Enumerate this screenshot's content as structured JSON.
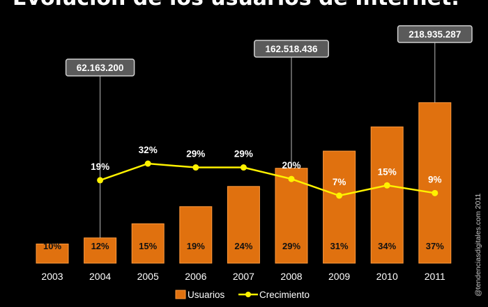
{
  "chart_data": {
    "type": "bar",
    "title": "Evolución de los usuarios de Internet.",
    "categories": [
      "2003",
      "2004",
      "2005",
      "2006",
      "2007",
      "2008",
      "2009",
      "2010",
      "2011"
    ],
    "bar_heights_relative": [
      0.19,
      0.25,
      0.39,
      0.56,
      0.76,
      0.94,
      1.11,
      1.35,
      1.59
    ],
    "series": [
      {
        "name": "Usuarios",
        "type": "bar",
        "labels": [
          "10%",
          "12%",
          "15%",
          "19%",
          "24%",
          "29%",
          "31%",
          "34%",
          "37%"
        ],
        "values": [
          10,
          12,
          15,
          19,
          24,
          29,
          31,
          34,
          37
        ]
      },
      {
        "name": "Crecimiento",
        "type": "line",
        "labels": [
          "",
          "19%",
          "32%",
          "29%",
          "29%",
          "20%",
          "7%",
          "15%",
          "9%"
        ],
        "values": [
          null,
          19,
          32,
          29,
          29,
          20,
          7,
          15,
          9
        ]
      }
    ],
    "callouts": [
      {
        "category": "2004",
        "text": "62.163.200"
      },
      {
        "category": "2008",
        "text": "162.518.436"
      },
      {
        "category": "2011",
        "text": "218.935.287"
      }
    ],
    "legend": {
      "position": "bottom",
      "items": [
        "Usuarios",
        "Crecimiento"
      ]
    },
    "watermark": "@tendenciasdigitales.com 2011",
    "colors": {
      "bar": "#E0710F",
      "bar_edge": "#FF9A3C",
      "line": "#FFF200",
      "callout_bg": "#5A5A5A",
      "callout_border": "#D0D0D0"
    }
  }
}
